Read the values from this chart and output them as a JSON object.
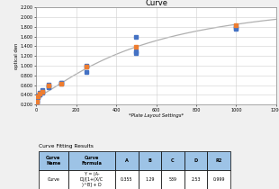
{
  "title": "Curve",
  "xlabel": "*Plate Layout Settings*",
  "ylabel": "optical den",
  "xlim": [
    0,
    1200
  ],
  "ylim": [
    0.2,
    2.2
  ],
  "yticks": [
    0.2,
    0.4,
    0.6,
    0.8,
    1.0,
    1.2,
    1.4,
    1.6,
    1.8,
    2.0,
    2.2
  ],
  "xticks": [
    0,
    200,
    400,
    600,
    800,
    1000,
    1200
  ],
  "data_points_x": [
    3.9,
    7.8,
    15.6,
    31.25,
    62.5,
    125,
    250,
    500,
    1000
  ],
  "data_blue1": [
    0.27,
    0.35,
    0.4,
    0.44,
    0.56,
    0.62,
    0.98,
    1.3,
    1.78
  ],
  "data_blue2": [
    0.25,
    0.36,
    0.41,
    0.47,
    0.58,
    0.64,
    1.0,
    1.59,
    1.82
  ],
  "data_blue3": [
    0.26,
    0.38,
    0.44,
    0.49,
    0.61,
    0.65,
    0.87,
    1.26,
    1.76
  ],
  "data_orange": [
    0.26,
    0.37,
    0.43,
    0.47,
    0.59,
    0.63,
    0.99,
    1.39,
    1.84
  ],
  "curve_color": "#b0b0b0",
  "dot_blue_color": "#4472c4",
  "dot_orange_color": "#ed7d31",
  "A": 0.355,
  "B": 1.29,
  "C": 539,
  "D": 2.53,
  "table_header_bg": "#9dc3e6",
  "curve_name": "Curve",
  "curve_formula_line1": "Y = (A-",
  "curve_formula_line2": "D)/[1+(X/C",
  "curve_formula_line3": ")^B] + D",
  "curve_formula": "Y = (A-\nD)/[1+(X/C\n)^B] + D",
  "R2": 0.999,
  "bg_color": "#f0f0f0",
  "plot_bg": "#ffffff",
  "grid_color": "#d0d0d0",
  "border_color": "#000000"
}
